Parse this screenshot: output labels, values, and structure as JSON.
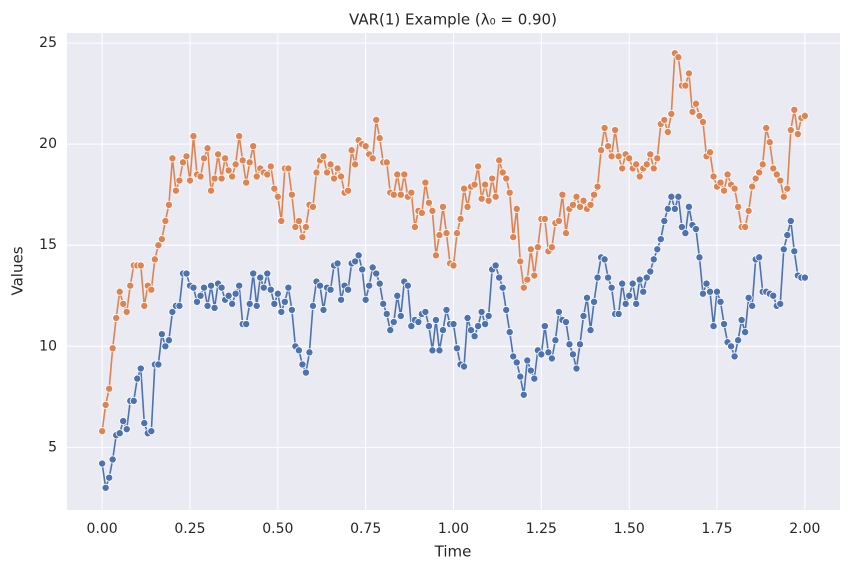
{
  "chart_data": {
    "type": "line",
    "title": "VAR(1) Example (λ₀ = 0.90)",
    "x_label": "Time",
    "y_label": "Values",
    "xlim": [
      -0.1,
      2.1
    ],
    "ylim": [
      1.9,
      25.5
    ],
    "xticks": [
      {
        "value": 0,
        "label": "0.00"
      },
      {
        "value": 0.25,
        "label": "0.25"
      },
      {
        "value": 0.5,
        "label": "0.50"
      },
      {
        "value": 0.75,
        "label": "0.75"
      },
      {
        "value": 1,
        "label": "1.00"
      },
      {
        "value": 1.25,
        "label": "1.25"
      },
      {
        "value": 1.5,
        "label": "1.50"
      },
      {
        "value": 1.75,
        "label": "1.75"
      },
      {
        "value": 2,
        "label": "2.00"
      }
    ],
    "yticks": [
      5,
      10,
      15,
      20,
      25
    ],
    "grid": true,
    "background": "#eaeaf2",
    "x": [
      0,
      0.01,
      0.02,
      0.03,
      0.04,
      0.05,
      0.06,
      0.07,
      0.08,
      0.09,
      0.1,
      0.11,
      0.12,
      0.13,
      0.14,
      0.15,
      0.16,
      0.17,
      0.18,
      0.19,
      0.2,
      0.21,
      0.22,
      0.23,
      0.24,
      0.25,
      0.26,
      0.27,
      0.28,
      0.29,
      0.3,
      0.31,
      0.32,
      0.33,
      0.34,
      0.35,
      0.36,
      0.37,
      0.38,
      0.39,
      0.4,
      0.41,
      0.42,
      0.43,
      0.44,
      0.45,
      0.46,
      0.47,
      0.48,
      0.49,
      0.5,
      0.51,
      0.52,
      0.53,
      0.54,
      0.55,
      0.56,
      0.57,
      0.58,
      0.59,
      0.6,
      0.61,
      0.62,
      0.63,
      0.64,
      0.65,
      0.66,
      0.67,
      0.68,
      0.69,
      0.7,
      0.71,
      0.72,
      0.73,
      0.74,
      0.75,
      0.76,
      0.77,
      0.78,
      0.79,
      0.8,
      0.81,
      0.82,
      0.83,
      0.84,
      0.85,
      0.86,
      0.87,
      0.88,
      0.89,
      0.9,
      0.91,
      0.92,
      0.93,
      0.94,
      0.95,
      0.96,
      0.97,
      0.98,
      0.99,
      1,
      1.01,
      1.02,
      1.03,
      1.04,
      1.05,
      1.06,
      1.07,
      1.08,
      1.09,
      1.1,
      1.11,
      1.12,
      1.13,
      1.14,
      1.15,
      1.16,
      1.17,
      1.18,
      1.19,
      1.2,
      1.21,
      1.22,
      1.23,
      1.24,
      1.25,
      1.26,
      1.27,
      1.28,
      1.29,
      1.3,
      1.31,
      1.32,
      1.33,
      1.34,
      1.35,
      1.36,
      1.37,
      1.38,
      1.39,
      1.4,
      1.41,
      1.42,
      1.43,
      1.44,
      1.45,
      1.46,
      1.47,
      1.48,
      1.49,
      1.5,
      1.51,
      1.52,
      1.53,
      1.54,
      1.55,
      1.56,
      1.57,
      1.58,
      1.59,
      1.6,
      1.61,
      1.62,
      1.63,
      1.64,
      1.65,
      1.66,
      1.67,
      1.68,
      1.69,
      1.7,
      1.71,
      1.72,
      1.73,
      1.74,
      1.75,
      1.76,
      1.77,
      1.78,
      1.79,
      1.8,
      1.81,
      1.82,
      1.83,
      1.84,
      1.85,
      1.86,
      1.87,
      1.88,
      1.89,
      1.9,
      1.91,
      1.92,
      1.93,
      1.94,
      1.95,
      1.96,
      1.97,
      1.98,
      1.99,
      2
    ],
    "series": [
      {
        "color": "#4c72b0",
        "values": [
          4.2,
          3.0,
          3.5,
          4.4,
          5.6,
          5.7,
          6.3,
          5.9,
          7.3,
          7.3,
          8.4,
          8.9,
          6.2,
          5.7,
          5.8,
          9.1,
          9.1,
          10.6,
          10.0,
          10.3,
          11.7,
          12.0,
          12.0,
          13.6,
          13.6,
          13.0,
          12.9,
          12.2,
          12.5,
          12.9,
          12.0,
          13.0,
          11.9,
          13.1,
          12.9,
          12.3,
          12.5,
          12.1,
          12.6,
          13.0,
          11.1,
          11.1,
          12.1,
          13.6,
          12.0,
          13.4,
          12.9,
          13.6,
          12.8,
          12.1,
          12.6,
          11.7,
          12.2,
          12.9,
          11.8,
          10.0,
          9.8,
          9.1,
          8.7,
          9.7,
          12.0,
          13.2,
          13.0,
          11.8,
          12.9,
          12.8,
          14.0,
          14.1,
          12.3,
          13.0,
          12.8,
          14.1,
          14.2,
          14.5,
          13.8,
          12.3,
          13.0,
          13.9,
          13.6,
          13.1,
          12.1,
          11.6,
          10.8,
          11.2,
          12.5,
          11.5,
          13.2,
          13.0,
          11.0,
          11.3,
          11.2,
          11.6,
          11.7,
          11.0,
          9.8,
          11.3,
          9.8,
          10.8,
          11.8,
          11.1,
          11.1,
          9.9,
          9.1,
          9.0,
          11.4,
          10.8,
          10.5,
          11.0,
          11.7,
          11.1,
          11.5,
          13.8,
          14.0,
          13.4,
          12.9,
          11.8,
          10.7,
          9.5,
          9.2,
          8.5,
          7.6,
          9.3,
          8.8,
          8.4,
          9.8,
          9.6,
          11.0,
          9.7,
          9.4,
          10.3,
          11.7,
          11.3,
          11.2,
          10.1,
          9.6,
          8.9,
          10.1,
          11.5,
          12.4,
          10.8,
          12.2,
          13.4,
          14.4,
          14.3,
          13.4,
          12.9,
          11.6,
          11.6,
          13.1,
          12.1,
          12.5,
          13.1,
          12.1,
          13.3,
          12.7,
          13.4,
          13.7,
          14.3,
          14.8,
          15.3,
          16.2,
          16.8,
          17.4,
          16.8,
          17.4,
          15.9,
          15.6,
          16.9,
          16.0,
          15.8,
          14.4,
          12.6,
          13.1,
          12.7,
          11.0,
          12.7,
          12.2,
          11.1,
          10.2,
          10.0,
          9.5,
          10.3,
          11.3,
          10.7,
          12.4,
          12.0,
          14.3,
          14.4,
          12.7,
          12.7,
          12.6,
          12.5,
          12.0,
          12.1,
          14.8,
          15.5,
          16.2,
          14.7,
          13.5,
          13.4,
          13.4
        ]
      },
      {
        "color": "#dd8452",
        "values": [
          5.8,
          7.1,
          7.9,
          9.9,
          11.4,
          12.7,
          12.1,
          11.7,
          13.0,
          14.0,
          14.0,
          14.0,
          12.0,
          13.0,
          12.8,
          14.3,
          15.0,
          15.3,
          16.2,
          17.0,
          19.3,
          17.7,
          18.2,
          19.1,
          19.4,
          18.2,
          20.4,
          18.5,
          18.4,
          19.3,
          19.8,
          17.7,
          18.3,
          19.5,
          18.3,
          19.3,
          18.7,
          18.4,
          19.0,
          20.4,
          19.2,
          18.1,
          19.1,
          19.9,
          18.4,
          18.8,
          18.6,
          18.5,
          18.9,
          17.8,
          17.4,
          16.2,
          18.8,
          18.8,
          17.5,
          15.9,
          16.2,
          15.4,
          15.9,
          17.0,
          16.9,
          18.6,
          19.2,
          19.4,
          18.6,
          19.0,
          18.3,
          18.8,
          18.4,
          17.6,
          17.7,
          19.7,
          19.0,
          20.2,
          20.0,
          19.9,
          19.5,
          19.3,
          21.2,
          20.3,
          19.1,
          19.1,
          17.6,
          17.5,
          18.5,
          17.5,
          18.5,
          17.4,
          17.6,
          15.9,
          16.7,
          16.6,
          18.1,
          17.1,
          16.7,
          14.5,
          15.5,
          16.9,
          15.6,
          14.1,
          14.0,
          15.6,
          16.3,
          17.8,
          16.9,
          17.9,
          18.0,
          18.9,
          17.3,
          18.0,
          17.2,
          18.3,
          17.4,
          19.2,
          18.6,
          18.3,
          17.6,
          15.4,
          16.8,
          14.2,
          12.9,
          13.3,
          14.8,
          13.5,
          14.9,
          16.3,
          16.3,
          14.7,
          14.9,
          16.1,
          16.2,
          17.5,
          15.6,
          16.8,
          17.0,
          17.4,
          16.9,
          17.2,
          16.8,
          17.0,
          17.5,
          17.9,
          19.7,
          20.8,
          19.9,
          19.4,
          20.7,
          19.4,
          18.8,
          19.5,
          19.3,
          18.8,
          19.0,
          18.4,
          18.8,
          19.0,
          19.5,
          18.8,
          19.3,
          21.0,
          21.2,
          20.6,
          21.5,
          24.5,
          24.3,
          22.9,
          22.9,
          23.5,
          21.6,
          22.0,
          21.4,
          21.1,
          19.4,
          19.6,
          18.4,
          17.9,
          18.1,
          17.7,
          18.5,
          18.0,
          17.8,
          16.9,
          15.9,
          15.9,
          16.7,
          17.9,
          18.3,
          18.6,
          19.0,
          20.8,
          20.1,
          18.8,
          18.5,
          18.2,
          17.4,
          17.8,
          20.7,
          21.7,
          20.5,
          21.3,
          21.4
        ]
      }
    ]
  }
}
